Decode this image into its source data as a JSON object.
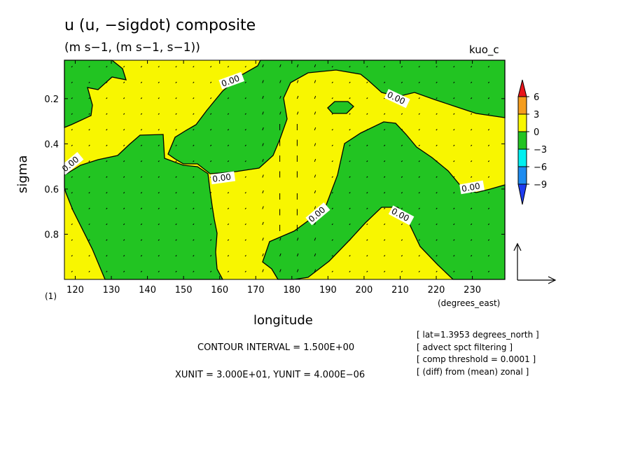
{
  "chart_data": {
    "type": "heatmap",
    "title": "u (u, −sigdot) composite",
    "subtitle": "(m s−1, (m s−1, s−1))",
    "tag": "kuo_c",
    "panel_label": "(1)",
    "xlabel": "longitude",
    "xunits": "(degrees_east)",
    "ylabel": "sigma",
    "xlim": [
      117,
      239
    ],
    "ylim": [
      1.0,
      0.03
    ],
    "xticks": [
      "120",
      "130",
      "140",
      "150",
      "160",
      "170",
      "180",
      "190",
      "200",
      "210",
      "220",
      "230"
    ],
    "xtick_values": [
      120,
      130,
      140,
      150,
      160,
      170,
      180,
      190,
      200,
      210,
      220,
      230
    ],
    "yticks": [
      "0.2",
      "0.4",
      "0.6",
      "0.8"
    ],
    "ytick_values": [
      0.2,
      0.4,
      0.6,
      0.8
    ],
    "contour_labels": [
      "0.00",
      "0.00",
      "0.00",
      "0.00",
      "0.00",
      "0.00",
      "0.00"
    ],
    "colorbar": {
      "labels": [
        "6",
        "3",
        "0",
        "−3",
        "−6",
        "−9"
      ],
      "colors": [
        "#e8141b",
        "#f59d1d",
        "#f8f600",
        "#22c422",
        "#00f0f0",
        "#1e8cf0",
        "#1e3cf0"
      ]
    },
    "field_colors": {
      "positive": "#f8f600",
      "negative": "#22c422"
    },
    "contour_interval": "CONTOUR INTERVAL = 1.500E+00",
    "vector_units": "XUNIT = 3.000E+01, YUNIT = 4.000E−06",
    "notes": [
      "[ lat=1.3953 degrees_north ]",
      "[ advect spct filtering ]",
      "[ comp threshold = 0.0001 ]",
      "[ (diff) from (mean) zonal ]"
    ]
  }
}
